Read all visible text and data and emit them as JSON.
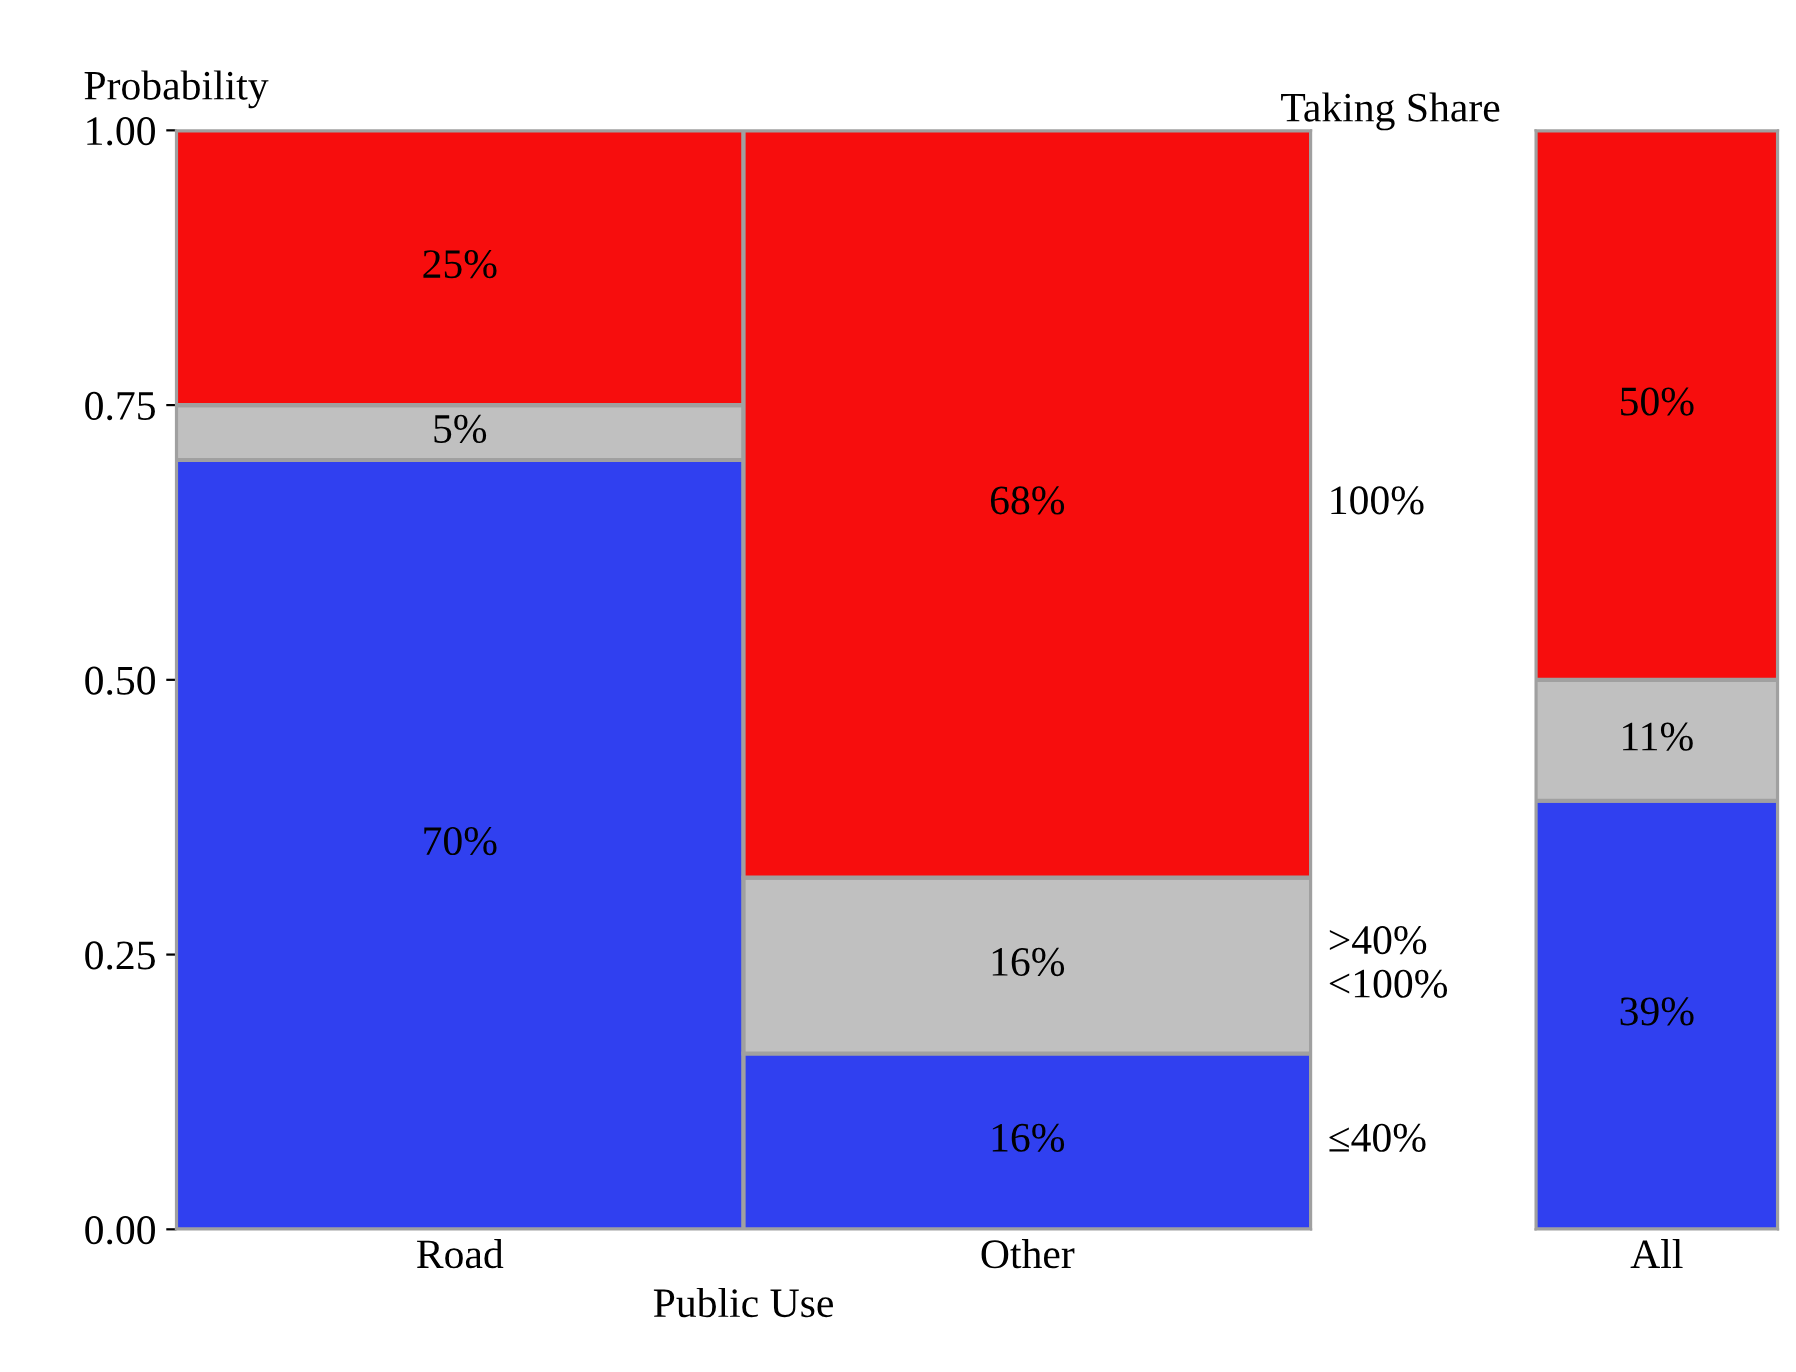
{
  "chart_data": [
    {
      "type": "bar",
      "stacked": true,
      "xlabel": "Public Use",
      "ylabel": "Probability",
      "legend_title": "Taking Share",
      "categories": [
        "Road",
        "Other"
      ],
      "ylim": [
        0,
        1
      ],
      "yticks": [
        {
          "value": 0,
          "label": "0.00"
        },
        {
          "value": 0.25,
          "label": "0.25"
        },
        {
          "value": 0.5,
          "label": "0.50"
        },
        {
          "value": 0.75,
          "label": "0.75"
        },
        {
          "value": 1,
          "label": "1.00"
        }
      ],
      "series": [
        {
          "name": "≤40%",
          "color": "#3040f0",
          "values": [
            0.7,
            0.16
          ],
          "value_labels": [
            "70%",
            "16%"
          ]
        },
        {
          "name": ">40%\n<100%",
          "color": "#c0c0c0",
          "values": [
            0.05,
            0.16
          ],
          "value_labels": [
            "5%",
            "16%"
          ]
        },
        {
          "name": "100%",
          "color": "#f70d0d",
          "values": [
            0.25,
            0.68
          ],
          "value_labels": [
            "25%",
            "68%"
          ]
        }
      ]
    },
    {
      "type": "bar",
      "stacked": true,
      "categories": [
        "All"
      ],
      "ylim": [
        0,
        1
      ],
      "tick_labels": "x",
      "series": [
        {
          "color": "#3040f0",
          "values": [
            0.39
          ],
          "value_labels": [
            "39%"
          ]
        },
        {
          "color": "#c0c0c0",
          "values": [
            0.11
          ],
          "value_labels": [
            "11%"
          ]
        },
        {
          "color": "#f70d0d",
          "values": [
            0.5
          ],
          "value_labels": [
            "50%"
          ]
        }
      ]
    }
  ]
}
